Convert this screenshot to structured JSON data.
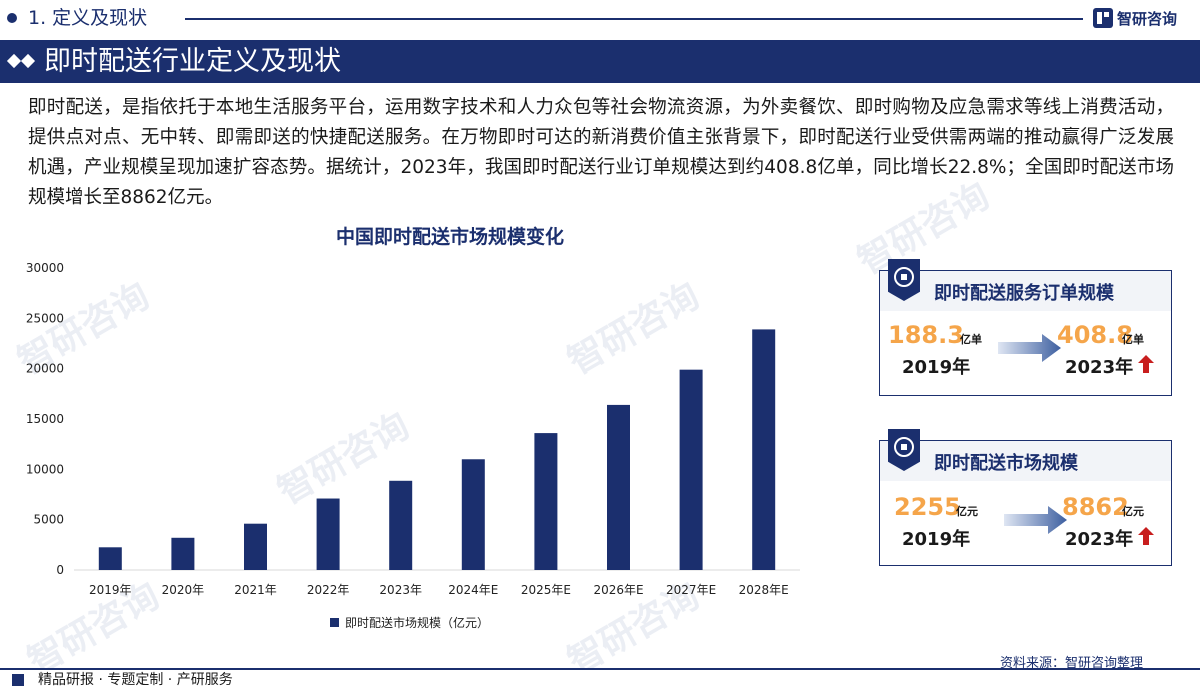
{
  "header": {
    "section": "1. 定义及现状",
    "logo_text": "智研咨询",
    "title": "即时配送行业定义及现状"
  },
  "intro": "即时配送，是指依托于本地生活服务平台，运用数字技术和人力众包等社会物流资源，为外卖餐饮、即时购物及应急需求等线上消费活动，提供点对点、无中转、即需即送的快捷配送服务。在万物即时可达的新消费价值主张背景下，即时配送行业受供需两端的推动赢得广泛发展机遇，产业规模呈现加速扩容态势。据统计，2023年，我国即时配送行业订单规模达到约408.8亿单，同比增长22.8%；全国即时配送市场规模增长至8862亿元。",
  "watermark": "智研咨询",
  "chart_data": {
    "type": "bar",
    "title": "中国即时配送市场规模变化",
    "categories": [
      "2019年",
      "2020年",
      "2021年",
      "2022年",
      "2023年",
      "2024年E",
      "2025年E",
      "2026年E",
      "2027年E",
      "2028年E"
    ],
    "series": [
      {
        "name": "即时配送市场规模（亿元）",
        "values": [
          2255,
          3200,
          4600,
          7100,
          8862,
          11000,
          13600,
          16400,
          19900,
          23900
        ]
      }
    ],
    "yticks": [
      0,
      5000,
      10000,
      15000,
      20000,
      25000,
      30000
    ],
    "ylim": [
      0,
      30000
    ],
    "color": "#1b2f6e",
    "grid": false,
    "legend_position": "bottom"
  },
  "cards": [
    {
      "title": "即时配送服务订单规模",
      "from_value": "188.3",
      "from_unit": "亿单",
      "from_year": "2019年",
      "to_value": "408.8",
      "to_unit": "亿单",
      "to_year": "2023年"
    },
    {
      "title": "即时配送市场规模",
      "from_value": "2255",
      "from_unit": "亿元",
      "from_year": "2019年",
      "to_value": "8862",
      "to_unit": "亿元",
      "to_year": "2023年"
    }
  ],
  "source": "资料来源：智研咨询整理",
  "footer": "精品研报 · 专题定制 · 产研服务",
  "colors": {
    "brand": "#1b2f6e",
    "accent": "#f5a54a",
    "up_arrow": "#c81e1e"
  }
}
